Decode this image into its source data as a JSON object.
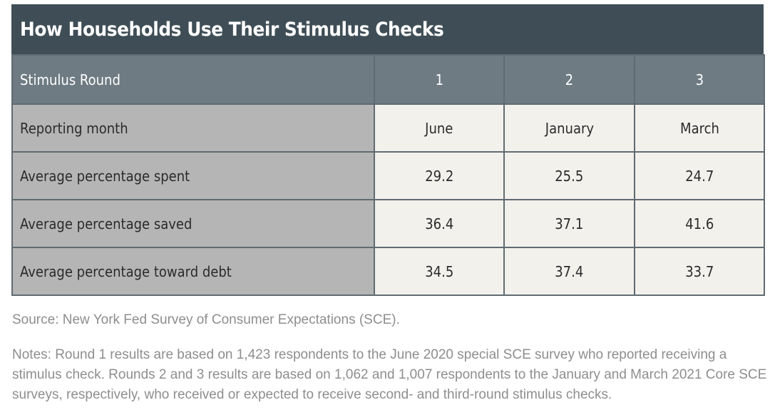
{
  "chart_data": {
    "type": "table",
    "title": "How Households Use Their Stimulus Checks",
    "header": {
      "label": "Stimulus Round",
      "columns": [
        "1",
        "2",
        "3"
      ]
    },
    "rows": [
      {
        "label": "Reporting month",
        "values": [
          "June",
          "January",
          "March"
        ]
      },
      {
        "label": "Average percentage spent",
        "values": [
          "29.2",
          "25.5",
          "24.7"
        ]
      },
      {
        "label": "Average percentage saved",
        "values": [
          "36.4",
          "37.1",
          "41.6"
        ]
      },
      {
        "label": "Average percentage toward debt",
        "values": [
          "34.5",
          "37.4",
          "33.7"
        ]
      }
    ],
    "colors": {
      "title_bar": "#3f4e56",
      "header_row": "#6e7b83",
      "label_column": "#b5b5b5",
      "value_cells": "#f3f1ec",
      "footnote_text": "#8e8e8e"
    }
  },
  "footnotes": {
    "source": "Source: New York Fed Survey of Consumer Expectations (SCE).",
    "notes": "Notes: Round 1 results are based on 1,423 respondents to the June 2020 special SCE survey who reported receiving a stimulus check. Rounds 2 and 3 results are based on 1,062 and 1,007 respondents to the January and March 2021 Core SCE surveys, respectively, who received or expected to receive second- and third-round stimulus checks."
  }
}
